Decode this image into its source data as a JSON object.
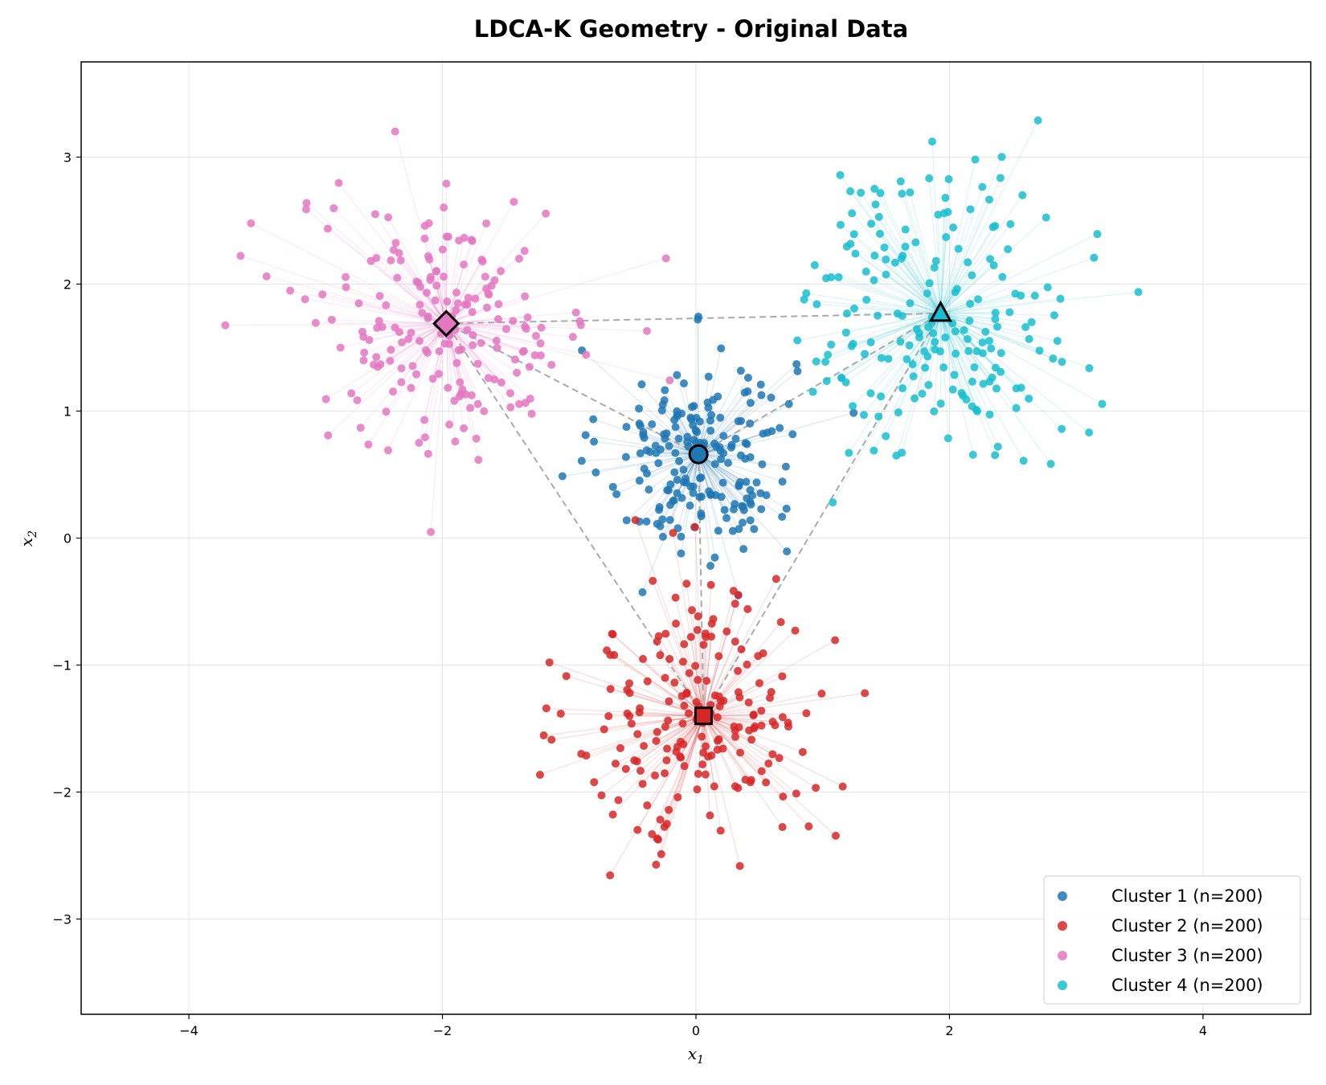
{
  "chart_data": {
    "type": "scatter",
    "title": "LDCA-K Geometry - Original Data",
    "xlabel": "x",
    "xlabel_sub": "1",
    "ylabel": "x",
    "ylabel_sub": "2",
    "xlim": [
      -4.85,
      4.85
    ],
    "ylim": [
      -3.75,
      3.75
    ],
    "xticks": [
      -4,
      -2,
      0,
      2,
      4
    ],
    "yticks": [
      -3,
      -2,
      -1,
      0,
      1,
      2,
      3
    ],
    "xtick_labels": [
      "−4",
      "−2",
      "0",
      "2",
      "4"
    ],
    "ytick_labels": [
      "−3",
      "−2",
      "−1",
      "0",
      "1",
      "2",
      "3"
    ],
    "grid": true,
    "legend_position": "lower-right",
    "series": [
      {
        "name": "Cluster 1 (n=200)",
        "color": "#1f77b4",
        "marker": "circle",
        "centroid": [
          0.02,
          0.66
        ],
        "spread": [
          0.38,
          0.42
        ],
        "n": 200
      },
      {
        "name": "Cluster 2 (n=200)",
        "color": "#d62728",
        "marker": "square",
        "centroid": [
          0.06,
          -1.4
        ],
        "spread": [
          0.5,
          0.55
        ],
        "n": 200
      },
      {
        "name": "Cluster 3 (n=200)",
        "color": "#e377c2",
        "marker": "diamond",
        "centroid": [
          -1.97,
          1.69
        ],
        "spread": [
          0.6,
          0.5
        ],
        "n": 200
      },
      {
        "name": "Cluster 4 (n=200)",
        "color": "#17becf",
        "marker": "triangle",
        "centroid": [
          1.93,
          1.77
        ],
        "spread": [
          0.55,
          0.6
        ],
        "n": 200
      }
    ]
  }
}
